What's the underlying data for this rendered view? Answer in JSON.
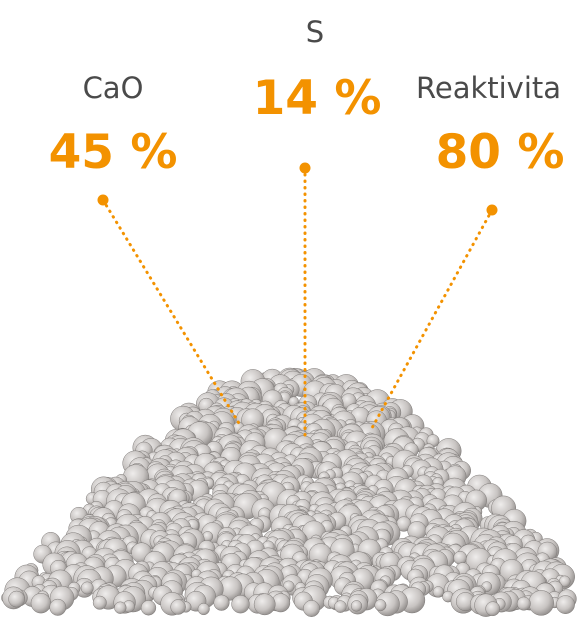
{
  "labels": [
    {
      "name": "CaO",
      "value": "45 %"
    },
    {
      "name": "S",
      "value": "14 %"
    },
    {
      "name": "Reaktivita",
      "value": "80 %"
    }
  ]
}
